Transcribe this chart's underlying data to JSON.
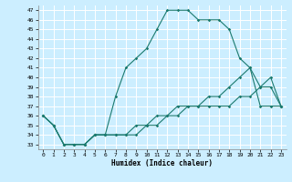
{
  "xlabel": "Humidex (Indice chaleur)",
  "bg_color": "#cceeff",
  "grid_color": "#ffffff",
  "line_color": "#1a7a6e",
  "xlim": [
    -0.5,
    23.5
  ],
  "ylim": [
    32.5,
    47.5
  ],
  "yticks": [
    33,
    34,
    35,
    36,
    37,
    38,
    39,
    40,
    41,
    42,
    43,
    44,
    45,
    46,
    47
  ],
  "xticks": [
    0,
    1,
    2,
    3,
    4,
    5,
    6,
    7,
    8,
    9,
    10,
    11,
    12,
    13,
    14,
    15,
    16,
    17,
    18,
    19,
    20,
    21,
    22,
    23
  ],
  "series": [
    [
      36,
      35,
      33,
      33,
      33,
      34,
      34,
      38,
      41,
      42,
      43,
      45,
      47,
      47,
      47,
      46,
      46,
      46,
      45,
      42,
      41,
      39,
      40,
      37
    ],
    [
      36,
      35,
      33,
      33,
      33,
      34,
      34,
      34,
      34,
      34,
      35,
      35,
      36,
      36,
      37,
      37,
      38,
      38,
      39,
      40,
      41,
      37,
      37,
      37
    ],
    [
      36,
      35,
      33,
      33,
      33,
      34,
      34,
      34,
      34,
      35,
      35,
      36,
      36,
      37,
      37,
      37,
      37,
      37,
      37,
      38,
      38,
      39,
      39,
      37
    ]
  ]
}
